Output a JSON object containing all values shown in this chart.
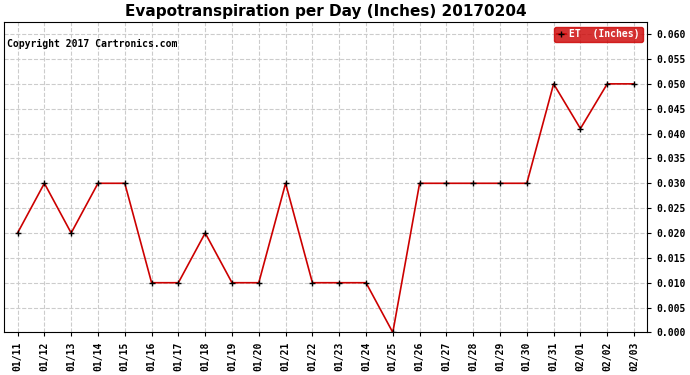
{
  "title": "Evapotranspiration per Day (Inches) 20170204",
  "copyright_text": "Copyright 2017 Cartronics.com",
  "legend_label": "ET  (Inches)",
  "x_labels": [
    "01/11",
    "01/12",
    "01/13",
    "01/14",
    "01/15",
    "01/16",
    "01/17",
    "01/18",
    "01/19",
    "01/20",
    "01/21",
    "01/22",
    "01/23",
    "01/24",
    "01/25",
    "01/26",
    "01/27",
    "01/28",
    "01/29",
    "01/30",
    "01/31",
    "02/01",
    "02/02",
    "02/03"
  ],
  "y_values": [
    0.02,
    0.03,
    0.02,
    0.03,
    0.03,
    0.01,
    0.01,
    0.02,
    0.01,
    0.01,
    0.03,
    0.01,
    0.01,
    0.01,
    0.0,
    0.03,
    0.03,
    0.03,
    0.03,
    0.03,
    0.05,
    0.041,
    0.05,
    0.05
  ],
  "line_color": "#cc0000",
  "marker_color": "#000000",
  "marker_style": "+",
  "marker_size": 5,
  "line_width": 1.2,
  "ylim": [
    0.0,
    0.0625
  ],
  "yticks": [
    0.0,
    0.005,
    0.01,
    0.015,
    0.02,
    0.025,
    0.03,
    0.035,
    0.04,
    0.045,
    0.05,
    0.055,
    0.06
  ],
  "grid_color": "#cccccc",
  "grid_style": "--",
  "background_color": "#ffffff",
  "legend_bg": "#cc0000",
  "legend_text_color": "#ffffff",
  "title_fontsize": 11,
  "tick_fontsize": 7,
  "copyright_fontsize": 7
}
